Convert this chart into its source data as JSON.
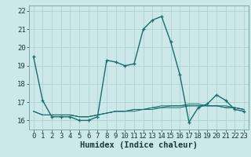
{
  "xlabel": "Humidex (Indice chaleur)",
  "bg_color": "#cce8e8",
  "grid_color": "#aacece",
  "line_color": "#1a6e6e",
  "xlim": [
    -0.5,
    23.5
  ],
  "ylim": [
    15.5,
    22.3
  ],
  "yticks": [
    16,
    17,
    18,
    19,
    20,
    21,
    22
  ],
  "xticks": [
    0,
    1,
    2,
    3,
    4,
    5,
    6,
    7,
    8,
    9,
    10,
    11,
    12,
    13,
    14,
    15,
    16,
    17,
    18,
    19,
    20,
    21,
    22,
    23
  ],
  "series": [
    [
      19.5,
      17.1,
      16.2,
      16.2,
      16.2,
      16.0,
      16.0,
      16.2,
      19.3,
      19.2,
      19.0,
      19.1,
      21.0,
      21.5,
      21.7,
      20.3,
      18.5,
      15.9,
      16.7,
      16.9,
      17.4,
      17.1,
      16.6,
      16.5
    ],
    [
      16.5,
      16.3,
      16.3,
      16.3,
      16.3,
      16.2,
      16.2,
      16.3,
      16.4,
      16.5,
      16.5,
      16.5,
      16.6,
      16.6,
      16.7,
      16.7,
      16.7,
      16.8,
      16.8,
      16.8,
      16.8,
      16.8,
      16.7,
      16.6
    ],
    [
      16.5,
      16.3,
      16.3,
      16.3,
      16.3,
      16.2,
      16.2,
      16.3,
      16.4,
      16.5,
      16.5,
      16.6,
      16.6,
      16.7,
      16.7,
      16.8,
      16.8,
      16.8,
      16.8,
      16.8,
      16.8,
      16.7,
      16.7,
      16.6
    ],
    [
      16.5,
      16.3,
      16.3,
      16.3,
      16.3,
      16.2,
      16.2,
      16.3,
      16.4,
      16.5,
      16.5,
      16.6,
      16.6,
      16.7,
      16.8,
      16.8,
      16.8,
      16.9,
      16.9,
      16.8,
      16.8,
      16.7,
      16.7,
      16.6
    ]
  ],
  "tick_fontsize": 6.5,
  "xlabel_fontsize": 7.5
}
